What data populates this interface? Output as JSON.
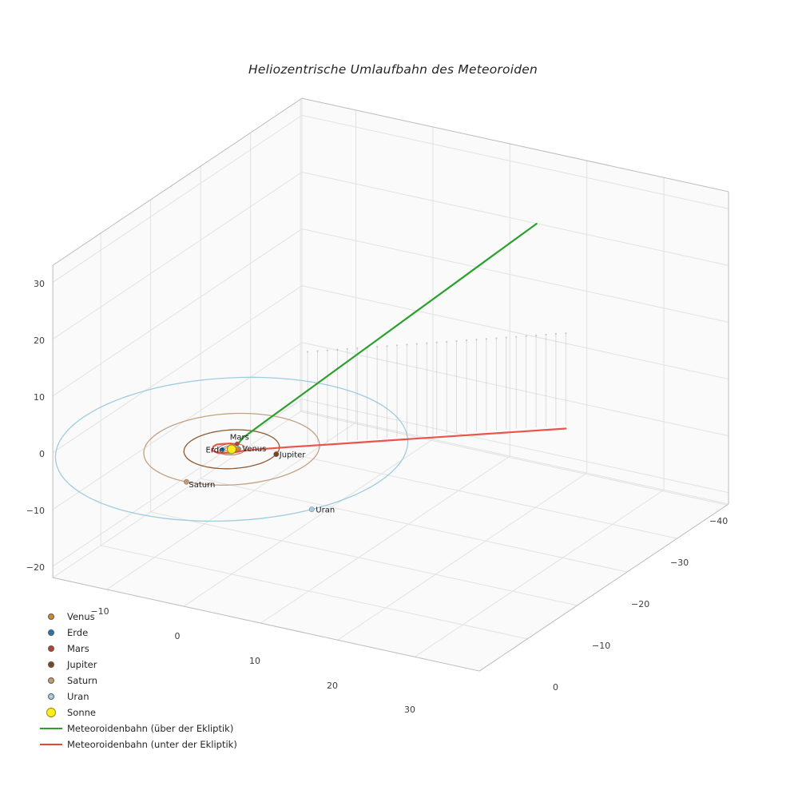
{
  "title": "Heliozentrische Umlaufbahn des Meteoroiden",
  "colors": {
    "background": "#ffffff",
    "grid": "#e2e2e2",
    "pane_edge": "#bbbbbb",
    "tick_text": "#3d3d3d",
    "traj_above": "#2ca02c",
    "traj_below": "#e8463c",
    "stem": "#a8a8a8"
  },
  "chart_data": {
    "type": "line",
    "projection": "3d",
    "title": "Heliozentrische Umlaufbahn des Meteoroiden",
    "grid": true,
    "legend_position": "lower left",
    "axes": {
      "x": {
        "ticks": [
          -10,
          0,
          10,
          20,
          30
        ],
        "lim": [
          -17,
          38.4
        ]
      },
      "y": {
        "ticks": [
          -40,
          -30,
          -20,
          -10,
          0
        ],
        "lim": [
          -40.3,
          9.6
        ]
      },
      "z": {
        "ticks": [
          30,
          20,
          10,
          0,
          -10,
          -20
        ],
        "lim": [
          -22,
          33
        ]
      }
    },
    "sun": {
      "label": "Sonne",
      "color": "#ffec1f",
      "edge_color": "#99880a",
      "position_au": [
        0,
        0,
        0
      ]
    },
    "planets": [
      {
        "name": "Venus",
        "label": "Venus",
        "orbit_radius_au": 0.72,
        "heliocentric_angle_deg": -30,
        "color": "#d4862a",
        "orbit_color": "#d4862a"
      },
      {
        "name": "Erde",
        "label": "Erde",
        "orbit_radius_au": 1.0,
        "heliocentric_angle_deg": 150,
        "color": "#1f77b4",
        "orbit_color": "#6699bb"
      },
      {
        "name": "Mars",
        "label": "Mars",
        "orbit_radius_au": 1.52,
        "heliocentric_angle_deg": -100,
        "color": "#b5432e",
        "orbit_color": "#c06a4a"
      },
      {
        "name": "Jupiter",
        "label": "Jupiter",
        "orbit_radius_au": 5.2,
        "heliocentric_angle_deg": -12,
        "color": "#7a4620",
        "orbit_color": "#8f5b34"
      },
      {
        "name": "Saturn",
        "label": "Saturn",
        "orbit_radius_au": 9.58,
        "heliocentric_angle_deg": 88,
        "color": "#c79a6b",
        "orbit_color": "#c2a284"
      },
      {
        "name": "Uran",
        "label": "Uran",
        "orbit_radius_au": 19.2,
        "heliocentric_angle_deg": 30,
        "color": "#a6cee3",
        "orbit_color": "#9fccdf"
      }
    ],
    "trajectory": {
      "below_ecliptic": [
        [
          29.2,
          -21.9,
          -0.6
        ],
        [
          24.0,
          -18.0,
          -0.55
        ],
        [
          19.0,
          -14.25,
          -0.5
        ],
        [
          14.0,
          -10.5,
          -0.45
        ],
        [
          9.0,
          -6.75,
          -0.4
        ],
        [
          5.0,
          -3.75,
          -0.35
        ],
        [
          2.5,
          -1.8,
          -0.3
        ],
        [
          1.2,
          -0.6,
          -0.25
        ],
        [
          0.3,
          0.6,
          -0.22
        ],
        [
          -0.9,
          1.3,
          -0.19
        ],
        [
          -1.9,
          1.0,
          -0.16
        ],
        [
          -2.3,
          0.1,
          -0.13
        ],
        [
          -2.25,
          -0.45,
          -0.115
        ],
        [
          -1.9,
          -0.8,
          -0.1
        ],
        [
          -1.0,
          -1.3,
          -0.05
        ],
        [
          -0.1,
          -1.35,
          0.0
        ]
      ],
      "above_ecliptic": [
        [
          -0.1,
          -1.35,
          0.0
        ],
        [
          0.96,
          -0.72,
          1.85
        ],
        [
          3.2,
          -2.4,
          4.82
        ],
        [
          6.4,
          -4.8,
          9.05
        ],
        [
          9.6,
          -7.2,
          13.29
        ],
        [
          12.8,
          -9.6,
          17.52
        ],
        [
          16.0,
          -12.0,
          21.76
        ],
        [
          19.2,
          -14.4,
          25.99
        ],
        [
          22.4,
          -16.8,
          30.23
        ],
        [
          26.64,
          -19.98,
          35.84
        ]
      ]
    },
    "stems": {
      "shadow_direction": [
        0.8,
        -0.6
      ],
      "t_range": [
        8.3,
        36.5
      ],
      "count": 27,
      "top_z": 16.2
    }
  },
  "legend": {
    "entries": [
      {
        "kind": "marker",
        "label": "Venus",
        "color": "#d4862a",
        "size": 6
      },
      {
        "kind": "marker",
        "label": "Erde",
        "color": "#1f77b4",
        "size": 6
      },
      {
        "kind": "marker",
        "label": "Mars",
        "color": "#b5432e",
        "size": 6
      },
      {
        "kind": "marker",
        "label": "Jupiter",
        "color": "#7a4620",
        "size": 6
      },
      {
        "kind": "marker",
        "label": "Saturn",
        "color": "#c79a6b",
        "size": 6
      },
      {
        "kind": "marker",
        "label": "Uran",
        "color": "#a6cee3",
        "size": 6
      },
      {
        "kind": "marker",
        "label": "Sonne",
        "color": "#ffec1f",
        "edge": "#99880a",
        "size": 10
      },
      {
        "kind": "line",
        "label": "Meteoroidenbahn (über der Ekliptik)",
        "color": "#2ca02c"
      },
      {
        "kind": "line",
        "label": "Meteoroidenbahn (unter der Ekliptik)",
        "color": "#e8463c"
      }
    ]
  }
}
